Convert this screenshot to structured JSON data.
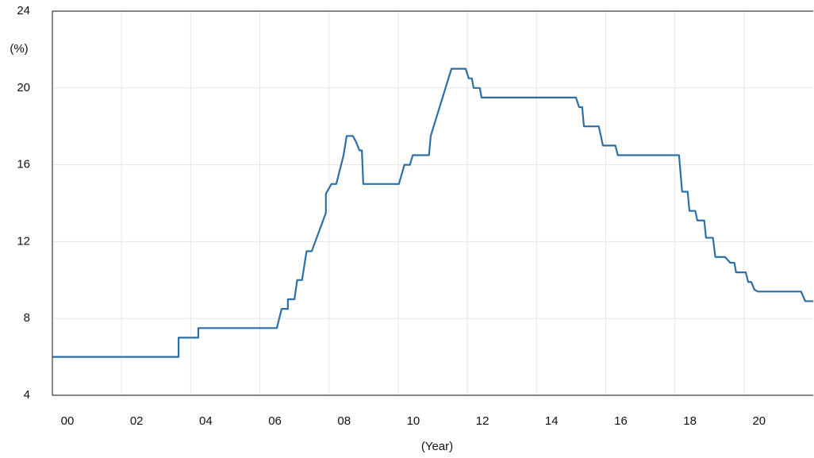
{
  "chart_data": {
    "type": "line",
    "y_label": "(%)",
    "x_label": "(Year)",
    "x": [
      2000,
      2003.65,
      2003.65,
      2004.22,
      2004.22,
      2006.49,
      2006.63,
      2006.81,
      2006.81,
      2007.0,
      2007.08,
      2007.22,
      2007.35,
      2007.5,
      2007.91,
      2007.91,
      2008.07,
      2008.21,
      2008.42,
      2008.51,
      2008.69,
      2008.78,
      2008.88,
      2008.95,
      2008.99,
      2010.02,
      2010.18,
      2010.34,
      2010.42,
      2010.89,
      2010.94,
      2011.54,
      2011.95,
      2012.04,
      2012.13,
      2012.18,
      2012.36,
      2012.41,
      2015.14,
      2015.23,
      2015.32,
      2015.37,
      2015.8,
      2015.92,
      2016.28,
      2016.35,
      2018.12,
      2018.21,
      2018.37,
      2018.42,
      2018.59,
      2018.65,
      2018.85,
      2018.9,
      2019.1,
      2019.17,
      2019.45,
      2019.6,
      2019.72,
      2019.77,
      2020.05,
      2020.12,
      2020.21,
      2020.3,
      2020.4,
      2021.65,
      2021.77,
      2022
    ],
    "series": [
      {
        "color": "#2e6fa3",
        "values": [
          6,
          6,
          7,
          7,
          7.5,
          7.5,
          8.5,
          8.5,
          9,
          9,
          10,
          10,
          11.5,
          11.5,
          13.5,
          14.5,
          15,
          15,
          16.5,
          17.5,
          17.5,
          17.2,
          16.75,
          16.75,
          15,
          15,
          16,
          16,
          16.5,
          16.5,
          17.5,
          21,
          21,
          20.5,
          20.5,
          20,
          20,
          19.5,
          19.5,
          19,
          19,
          18,
          18,
          17,
          17,
          16.5,
          16.5,
          14.6,
          14.6,
          13.6,
          13.6,
          13.1,
          13.1,
          12.2,
          12.2,
          11.2,
          11.2,
          10.9,
          10.9,
          10.4,
          10.4,
          9.9,
          9.9,
          9.5,
          9.4,
          9.4,
          8.9,
          8.9
        ]
      }
    ],
    "xlim": [
      2000,
      2022
    ],
    "xticks": [
      {
        "value": 2000,
        "label": "00"
      },
      {
        "value": 2002,
        "label": "02"
      },
      {
        "value": 2004,
        "label": "04"
      },
      {
        "value": 2006,
        "label": "06"
      },
      {
        "value": 2008,
        "label": "08"
      },
      {
        "value": 2010,
        "label": "10"
      },
      {
        "value": 2012,
        "label": "12"
      },
      {
        "value": 2014,
        "label": "14"
      },
      {
        "value": 2016,
        "label": "16"
      },
      {
        "value": 2018,
        "label": "18"
      },
      {
        "value": 2020,
        "label": "20"
      }
    ],
    "ylim": [
      4,
      24
    ],
    "yticks": [
      4,
      8,
      12,
      16,
      20,
      24
    ],
    "grid": true
  }
}
